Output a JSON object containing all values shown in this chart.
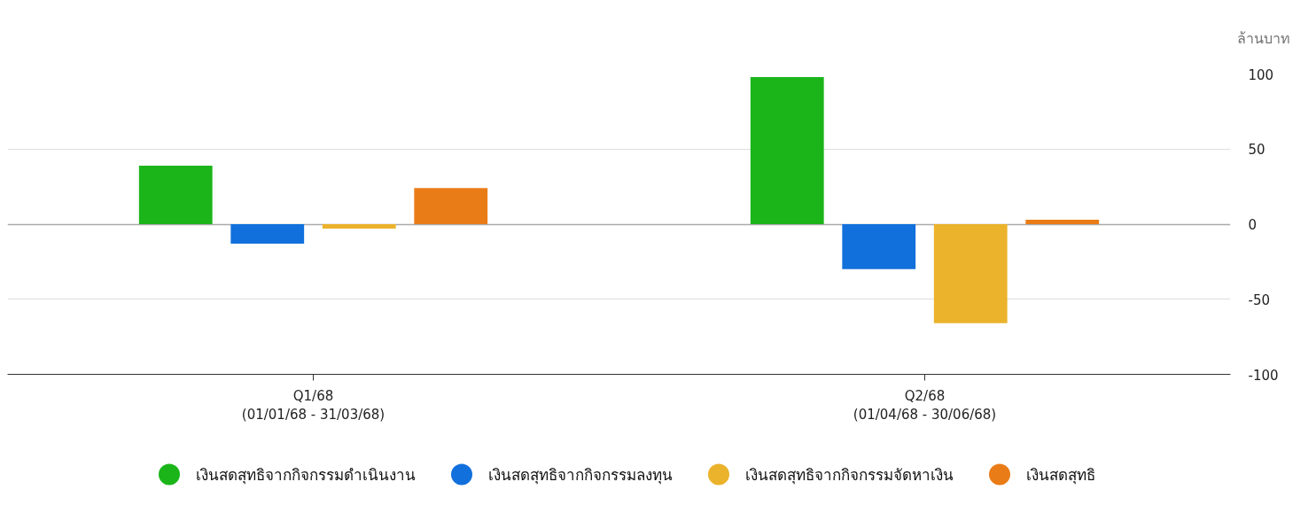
{
  "chart_data": {
    "type": "bar",
    "ylabel": "ล้านบาท",
    "categories": [
      "Q1/68\n(01/01/68 - 31/03/68)",
      "Q2/68\n(01/04/68 - 30/06/68)"
    ],
    "series": [
      {
        "name": "เงินสดสุทธิจากกิจกรรมดำเนินงาน",
        "color": "#1bb51a",
        "values": [
          39,
          98
        ]
      },
      {
        "name": "เงินสดสุทธิจากกิจกรรมลงทุน",
        "color": "#1170dc",
        "values": [
          -13,
          -30
        ]
      },
      {
        "name": "เงินสดสุทธิจากกิจกรรมจัดหาเงิน",
        "color": "#ebb22b",
        "values": [
          -3,
          -66
        ]
      },
      {
        "name": "เงินสดสุทธิ",
        "color": "#ea7c17",
        "values": [
          24,
          3
        ]
      }
    ],
    "ylim": [
      -100,
      100
    ],
    "yticks": [
      -100,
      -50,
      0,
      50,
      100
    ],
    "grid": "y",
    "legend": "bottom"
  }
}
